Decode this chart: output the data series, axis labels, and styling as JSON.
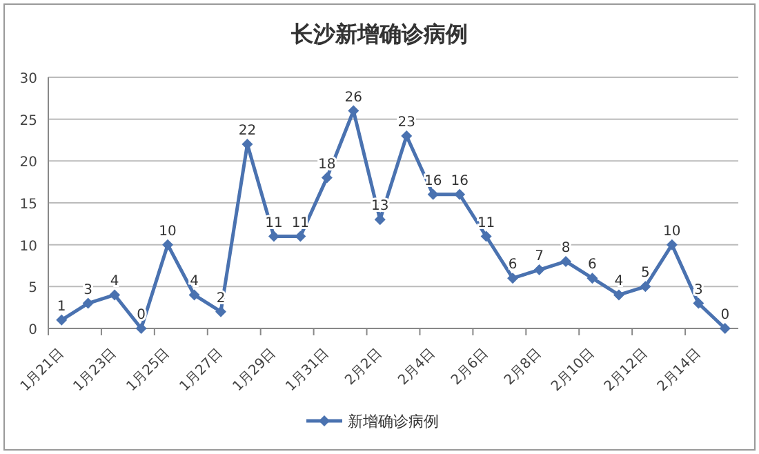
{
  "chart_data": {
    "type": "line",
    "title": "长沙新增确诊病例",
    "categories": [
      "1月21日",
      null,
      "1月23日",
      null,
      "1月25日",
      null,
      "1月27日",
      null,
      "1月29日",
      null,
      "1月31日",
      null,
      "2月2日",
      null,
      "2月4日",
      null,
      "2月6日",
      null,
      "2月8日",
      null,
      "2月10日",
      null,
      "2月12日",
      null,
      "2月14日",
      null
    ],
    "series": [
      {
        "name": "新增确诊病例",
        "color": "#4a72b0",
        "values": [
          1,
          3,
          4,
          0,
          10,
          4,
          2,
          22,
          11,
          11,
          18,
          26,
          13,
          23,
          16,
          16,
          11,
          6,
          7,
          8,
          6,
          4,
          5,
          10,
          3,
          0
        ]
      }
    ],
    "ylim": [
      0,
      30
    ],
    "yticks": [
      0,
      5,
      10,
      15,
      20,
      25,
      30
    ],
    "grid": "y",
    "legend": "bottom",
    "marker": "diamond",
    "data_labels": true
  }
}
